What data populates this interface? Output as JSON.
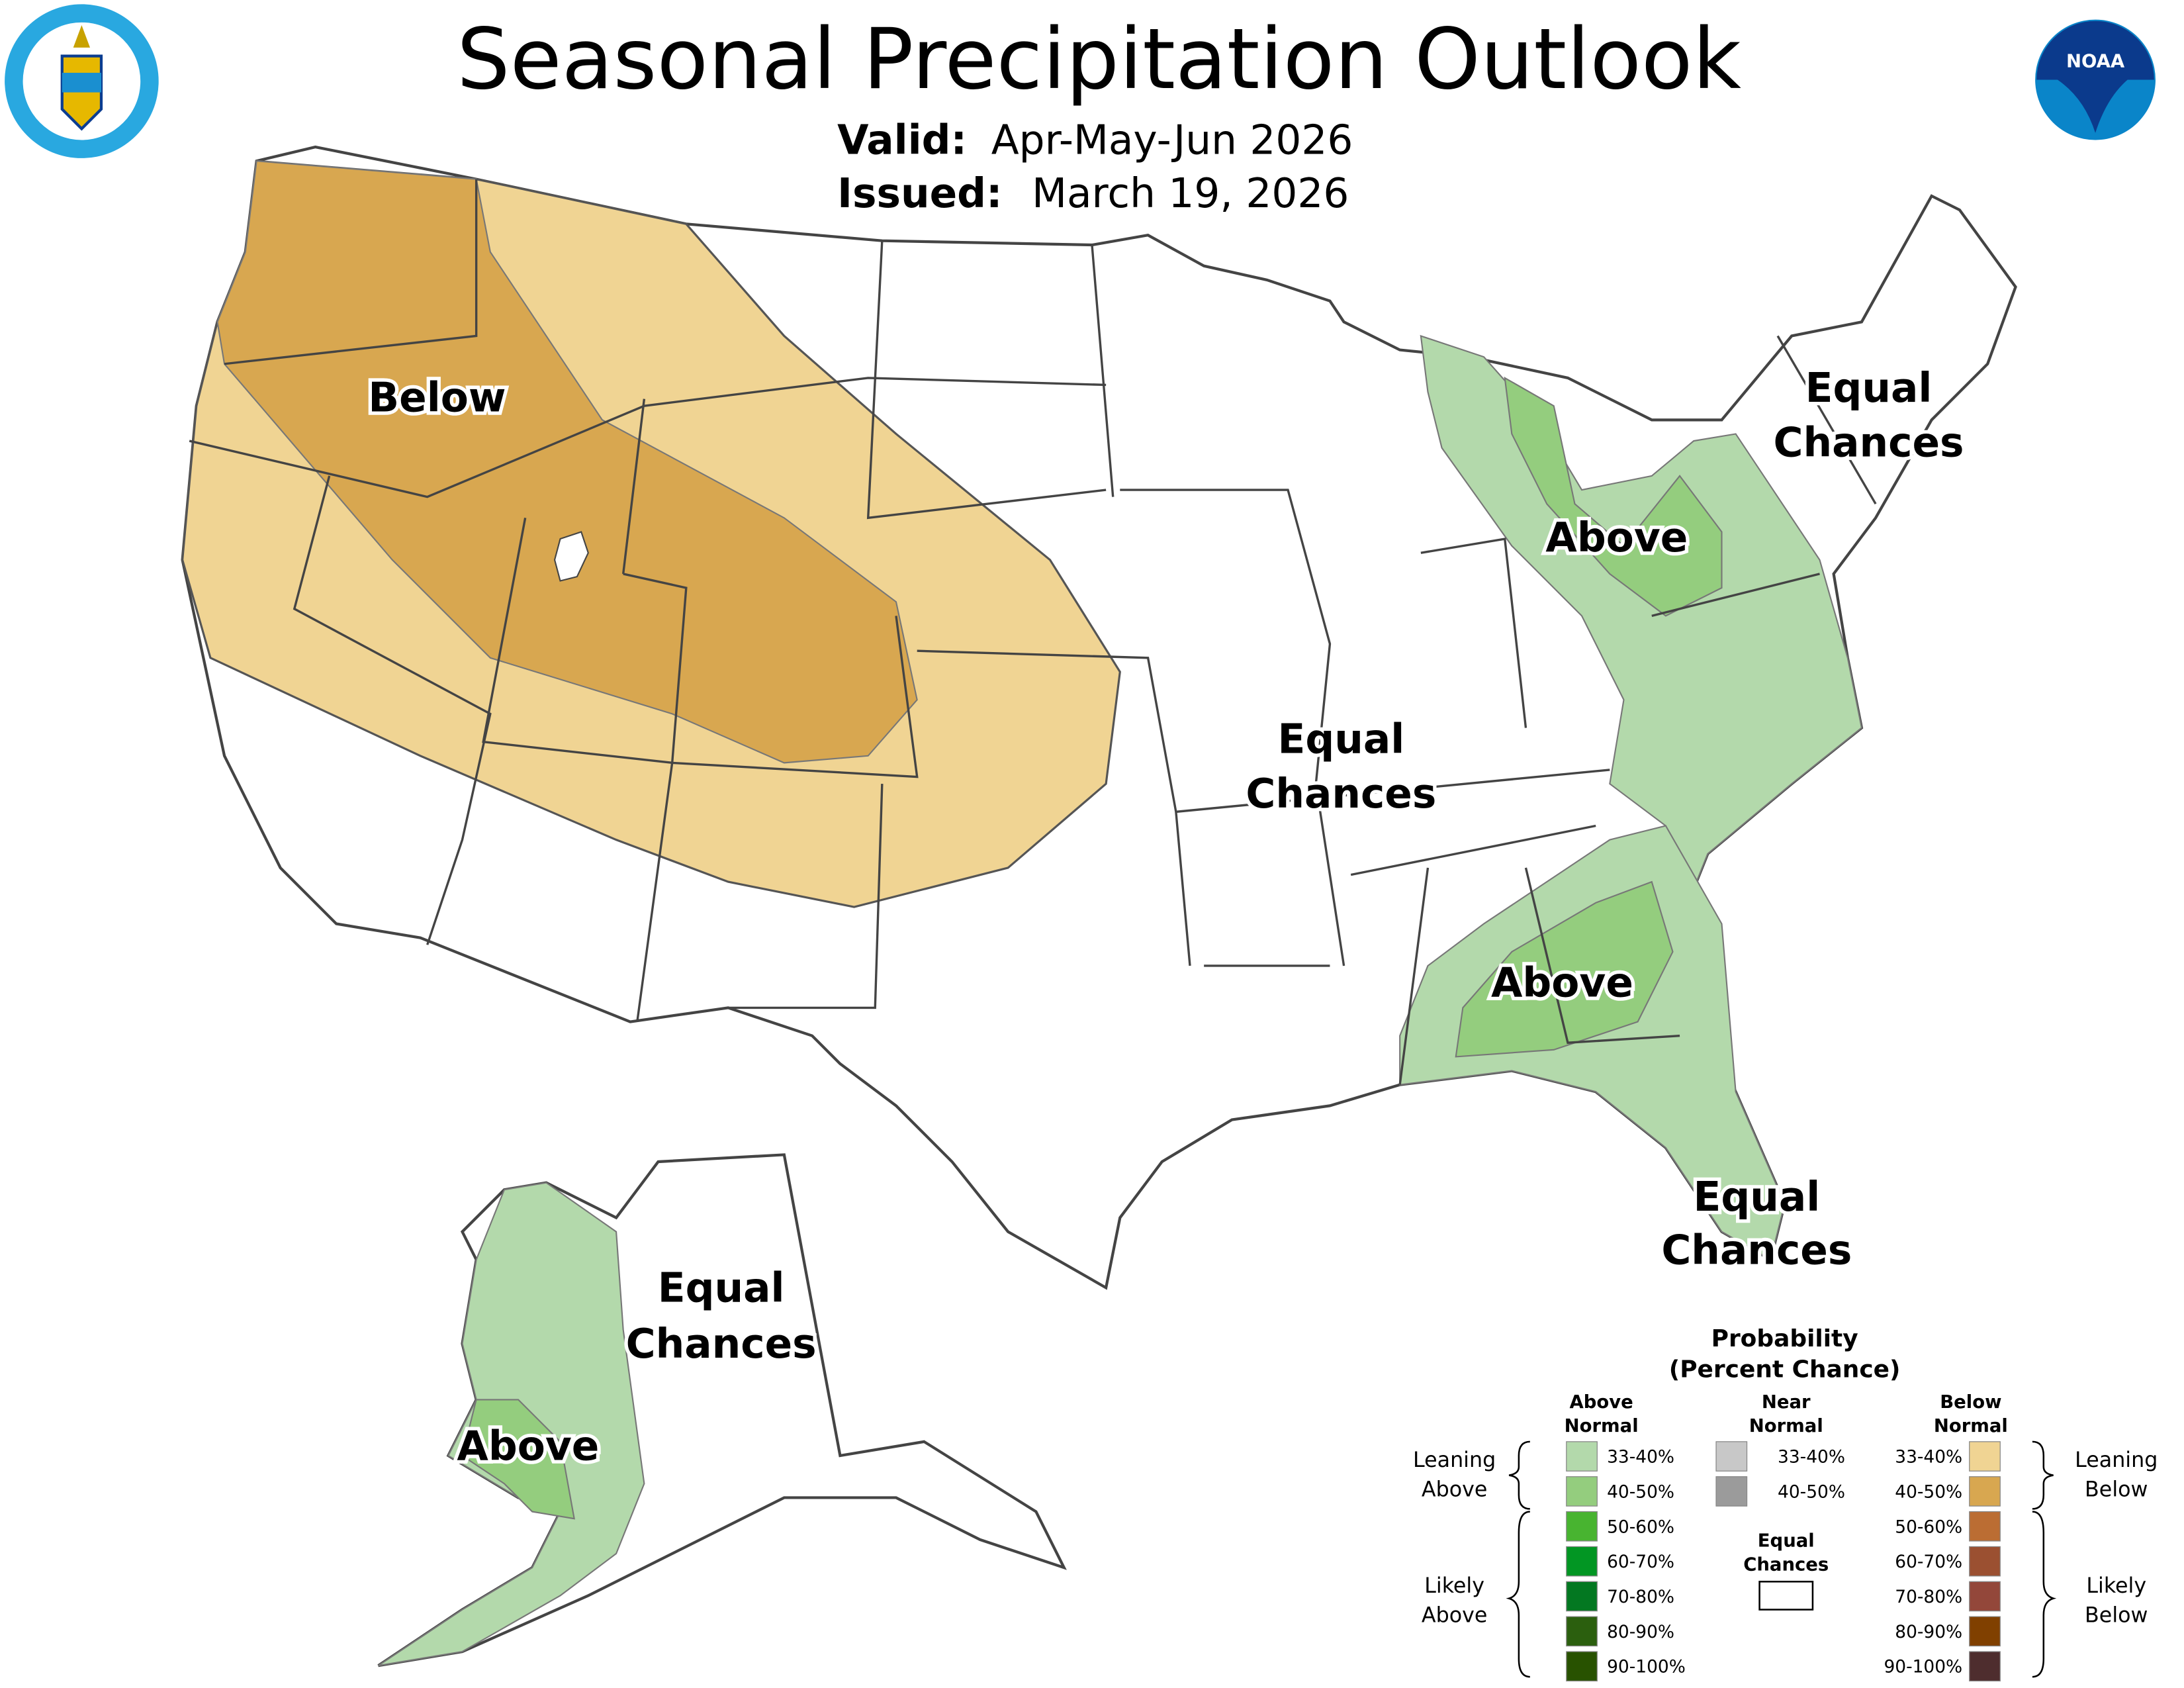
{
  "header": {
    "title": "Seasonal Precipitation Outlook",
    "valid_label": "Valid:",
    "valid_value": "Apr-May-Jun 2026",
    "issued_label": "Issued:",
    "issued_value": "March 19, 2026"
  },
  "logos": {
    "left": "DEPARTMENT OF COMMERCE UNITED STATES OF AMERICA",
    "right": "NOAA"
  },
  "map_labels": {
    "west": "Below",
    "northeast_1": "Equal",
    "northeast_2": "Chances",
    "ohio_valley": "Above",
    "central_1": "Equal",
    "central_2": "Chances",
    "southeast": "Above",
    "florida_1": "Equal",
    "florida_2": "Chances",
    "alaska_east_1": "Equal",
    "alaska_east_2": "Chances",
    "alaska_west": "Above"
  },
  "colors": {
    "below_33_40": "#f0d493",
    "below_40_50": "#d8a750",
    "above_33_40": "#b3d9ab",
    "above_40_50": "#94cd7e",
    "border": "#444444"
  },
  "legend": {
    "title_1": "Probability",
    "title_2": "(Percent Chance)",
    "above_header_1": "Above",
    "above_header_2": "Normal",
    "near_header_1": "Near",
    "near_header_2": "Normal",
    "below_header_1": "Below",
    "below_header_2": "Normal",
    "leaning_above_1": "Leaning",
    "leaning_above_2": "Above",
    "likely_above_1": "Likely",
    "likely_above_2": "Above",
    "leaning_below_1": "Leaning",
    "leaning_below_2": "Below",
    "likely_below_1": "Likely",
    "likely_below_2": "Below",
    "equal_1": "Equal",
    "equal_2": "Chances",
    "above": [
      {
        "range": "33-40%",
        "color": "#b3d9ab"
      },
      {
        "range": "40-50%",
        "color": "#94cd7e"
      },
      {
        "range": "50-60%",
        "color": "#48b430"
      },
      {
        "range": "60-70%",
        "color": "#029623"
      },
      {
        "range": "70-80%",
        "color": "#037821"
      },
      {
        "range": "80-90%",
        "color": "#2b5f0e"
      },
      {
        "range": "90-100%",
        "color": "#285200"
      }
    ],
    "near": [
      {
        "range": "33-40%",
        "color": "#c8c8c8"
      },
      {
        "range": "40-50%",
        "color": "#9b9b9b"
      }
    ],
    "below": [
      {
        "range": "33-40%",
        "color": "#f0d493"
      },
      {
        "range": "40-50%",
        "color": "#d8a750"
      },
      {
        "range": "50-60%",
        "color": "#bb6d33"
      },
      {
        "range": "60-70%",
        "color": "#9b5031"
      },
      {
        "range": "70-80%",
        "color": "#93473a"
      },
      {
        "range": "80-90%",
        "color": "#804000"
      },
      {
        "range": "90-100%",
        "color": "#4e2d2e"
      }
    ]
  }
}
